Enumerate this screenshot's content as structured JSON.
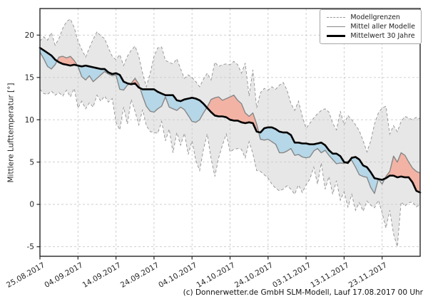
{
  "figure": {
    "ylabel": "Mittlere Lufttemperatur [°]",
    "footer_credit": "(c) Donnerwetter.de GmbH SLM-Modell, Lauf 17.08.2017 00 Uhr"
  },
  "legend": {
    "position": "upper right",
    "items": [
      {
        "label": "Modellgrenzen",
        "style": "dashed-gray"
      },
      {
        "label": "Mittel aller Modelle",
        "style": "solid-gray"
      },
      {
        "label": "Mittelwert 30 Jahre",
        "style": "thick-black"
      }
    ]
  },
  "colors": {
    "band": "#e7e7e7",
    "above_normal": "#f2b3a5",
    "below_normal": "#b5d7e8",
    "bound_line": "#999999",
    "model_mean_line": "#878787",
    "mean30_line": "#000000",
    "grid": "#c9c9c9",
    "spine": "#262626",
    "text": "#262626"
  },
  "chart_data": {
    "type": "line",
    "title": "",
    "xlabel": "",
    "ylabel": "Mittlere Lufttemperatur [°]",
    "x_unit": "days since 25.08.2017, 1 point per day",
    "x_ticks": {
      "days": [
        0,
        10,
        20,
        30,
        40,
        50,
        60,
        70,
        80,
        90
      ],
      "labels": [
        "25.08.2017",
        "04.09.2017",
        "14.09.2017",
        "24.09.2017",
        "04.10.2017",
        "14.10.2017",
        "24.10.2017",
        "03.11.2017",
        "13.11.2017",
        "23.11.2017"
      ]
    },
    "ylim": [
      -6.13,
      23.14
    ],
    "yticks": [
      -5,
      0,
      5,
      10,
      15,
      20
    ],
    "grid": true,
    "legend_position": "upper right",
    "fills": [
      {
        "between": [
          "Modellgrenzen obere Grenze",
          "Modellgrenzen untere Grenze"
        ],
        "color_key": "band"
      },
      {
        "between": [
          "Mittel aller Modelle",
          "Mittelwert 30 Jahre"
        ],
        "color_key_above": "above_normal",
        "color_key_below": "below_normal"
      }
    ],
    "series": [
      {
        "name": "Modellgrenzen obere Grenze",
        "line": "dashed",
        "values": [
          19.3,
          19.8,
          19.4,
          20.3,
          18.8,
          19.6,
          20.8,
          21.6,
          21.9,
          20.9,
          19.3,
          18.3,
          17.4,
          18.5,
          19.5,
          20.4,
          19.9,
          19.6,
          18.5,
          17.5,
          17.1,
          17.7,
          16.4,
          17.5,
          18.2,
          18.7,
          17.5,
          15.5,
          13.9,
          15.5,
          17.5,
          18.5,
          18.6,
          17.0,
          16.8,
          16.6,
          17.2,
          16.0,
          14.9,
          15.3,
          15.0,
          14.5,
          13.9,
          14.8,
          15.5,
          14.7,
          16.8,
          16.3,
          16.5,
          16.6,
          16.5,
          16.9,
          16.5,
          15.5,
          16.7,
          12.8,
          15.9,
          11.4,
          13.2,
          13.7,
          13.5,
          13.9,
          13.6,
          14.1,
          14.4,
          13.5,
          11.9,
          11.1,
          12.2,
          10.4,
          9.0,
          9.6,
          10.2,
          10.7,
          11.1,
          11.3,
          10.9,
          9.6,
          8.8,
          11.0,
          9.4,
          10.5,
          10.0,
          9.4,
          8.7,
          7.5,
          6.2,
          7.5,
          9.5,
          10.8,
          11.4,
          11.6,
          8.3,
          9.3,
          8.6,
          9.8,
          10.4,
          10.2,
          10.0,
          10.3,
          10.1
        ]
      },
      {
        "name": "Modellgrenzen untere Grenze",
        "line": "dashed",
        "values": [
          13.6,
          13.1,
          13.0,
          13.4,
          12.9,
          13.2,
          12.8,
          13.5,
          12.7,
          13.7,
          11.4,
          12.2,
          11.3,
          12.0,
          11.5,
          12.9,
          12.2,
          12.8,
          12.1,
          12.5,
          9.7,
          8.8,
          11.5,
          9.5,
          12.4,
          11.0,
          9.4,
          11.2,
          9.3,
          8.6,
          8.5,
          8.4,
          9.8,
          7.5,
          8.9,
          6.1,
          8.5,
          7.0,
          8.4,
          5.9,
          7.5,
          5.2,
          4.0,
          6.5,
          8.3,
          5.4,
          3.3,
          5.5,
          7.0,
          8.3,
          6.2,
          6.5,
          6.6,
          6.5,
          5.5,
          7.4,
          6.0,
          4.0,
          3.9,
          3.5,
          3.1,
          2.4,
          1.9,
          1.6,
          1.8,
          2.2,
          1.8,
          1.2,
          2.3,
          1.4,
          2.3,
          3.0,
          4.4,
          2.4,
          4.9,
          1.8,
          3.3,
          1.2,
          2.8,
          0.5,
          1.5,
          -0.3,
          1.2,
          -0.7,
          0.2,
          -0.8,
          0.4,
          -0.1,
          -0.4,
          0.5,
          -1.0,
          -2.8,
          -0.7,
          -3.5,
          -5.0,
          0.3,
          -0.2,
          0.2,
          0.3,
          -0.3,
          0.0
        ]
      },
      {
        "name": "Mittel aller Modelle",
        "line": "solid-gray",
        "values": [
          18.0,
          17.2,
          16.3,
          16.0,
          16.5,
          17.4,
          17.5,
          17.3,
          17.5,
          17.0,
          16.3,
          15.1,
          14.7,
          15.2,
          14.5,
          14.9,
          15.3,
          15.7,
          15.4,
          15.2,
          15.3,
          13.6,
          13.5,
          14.1,
          14.3,
          14.9,
          14.2,
          12.8,
          11.6,
          11.0,
          10.9,
          11.3,
          11.6,
          12.7,
          11.5,
          11.3,
          11.1,
          11.5,
          11.2,
          10.5,
          9.8,
          9.7,
          10.0,
          10.8,
          11.5,
          12.4,
          12.6,
          12.7,
          12.3,
          12.5,
          12.7,
          12.9,
          12.3,
          11.9,
          10.8,
          10.4,
          10.8,
          9.5,
          7.7,
          7.6,
          7.7,
          7.4,
          7.1,
          6.1,
          6.1,
          6.3,
          6.6,
          5.8,
          5.9,
          5.6,
          5.5,
          5.6,
          6.3,
          6.6,
          6.1,
          6.4,
          5.8,
          5.3,
          4.8,
          4.9,
          4.85,
          5.1,
          5.2,
          4.4,
          3.5,
          3.3,
          3.2,
          2.0,
          1.3,
          3.0,
          2.4,
          3.3,
          3.9,
          5.7,
          5.0,
          6.1,
          5.8,
          5.0,
          4.3,
          3.9,
          3.7
        ]
      },
      {
        "name": "Mittelwert 30 Jahre",
        "line": "thick-black",
        "values": [
          18.5,
          18.2,
          17.9,
          17.6,
          17.1,
          16.8,
          16.6,
          16.5,
          16.4,
          16.5,
          16.4,
          16.3,
          16.4,
          16.3,
          16.2,
          16.1,
          16.0,
          16.0,
          15.6,
          15.4,
          15.5,
          15.3,
          14.5,
          14.3,
          14.2,
          14.3,
          13.8,
          13.6,
          13.6,
          13.6,
          13.6,
          13.3,
          13.1,
          12.9,
          12.9,
          12.9,
          12.3,
          12.2,
          12.4,
          12.5,
          12.6,
          12.5,
          12.3,
          11.9,
          11.4,
          10.9,
          10.5,
          10.4,
          10.4,
          10.3,
          10.0,
          9.9,
          9.9,
          9.7,
          9.6,
          9.7,
          9.6,
          8.6,
          8.5,
          9.0,
          9.1,
          9.1,
          8.9,
          8.6,
          8.5,
          8.5,
          8.2,
          7.3,
          7.3,
          7.2,
          7.2,
          7.1,
          7.1,
          7.2,
          7.3,
          7.0,
          6.4,
          6.0,
          6.0,
          5.7,
          5.0,
          4.9,
          5.5,
          5.6,
          5.3,
          4.6,
          4.4,
          3.8,
          3.1,
          3.0,
          2.9,
          3.1,
          3.4,
          3.4,
          3.2,
          3.3,
          3.2,
          3.2,
          2.6,
          1.6,
          1.4
        ]
      }
    ]
  }
}
